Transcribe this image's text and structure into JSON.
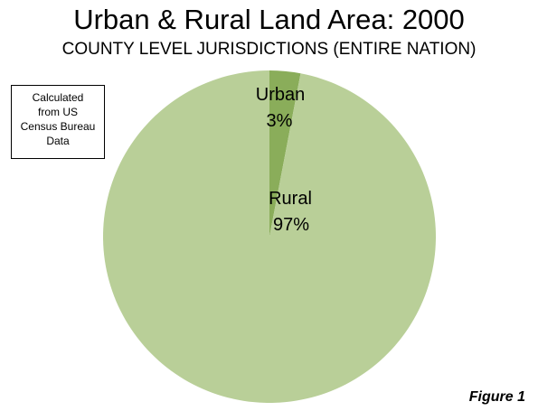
{
  "title": "Urban & Rural Land Area: 2000",
  "subtitle": "COUNTY LEVEL JURISDICTIONS (ENTIRE NATION)",
  "note": {
    "lines": [
      "Calculated",
      "from US",
      "Census Bureau",
      "Data"
    ]
  },
  "figure_label": "Figure 1",
  "colors": {
    "urban": "#8aad5a",
    "rural": "#b9cf98"
  },
  "chart_data": {
    "type": "pie",
    "slices": [
      {
        "label": "Urban",
        "value": 3,
        "percent_label": "3%"
      },
      {
        "label": "Rural",
        "value": 97,
        "percent_label": "97%"
      }
    ]
  }
}
